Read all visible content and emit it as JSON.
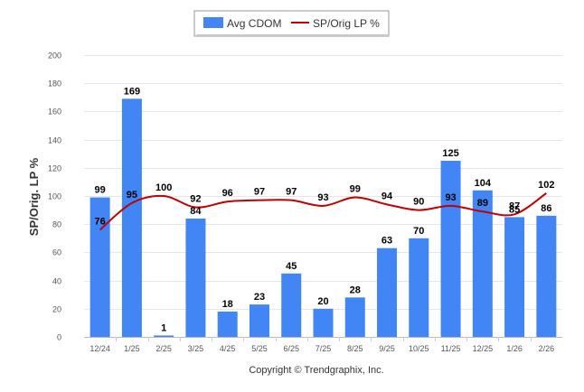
{
  "chart_data": {
    "type": "bar+line",
    "categories": [
      "12/24",
      "1/25",
      "2/25",
      "3/25",
      "4/25",
      "5/25",
      "6/25",
      "7/25",
      "8/25",
      "9/25",
      "10/25",
      "11/25",
      "12/25",
      "1/26",
      "2/26"
    ],
    "series": [
      {
        "name": "Avg CDOM",
        "type": "bar",
        "color": "#4285f4",
        "values": [
          99,
          169,
          1,
          84,
          18,
          23,
          45,
          20,
          28,
          63,
          70,
          125,
          104,
          85,
          86
        ]
      },
      {
        "name": "SP/Orig LP %",
        "type": "line",
        "color": "#c00000",
        "values": [
          76,
          95,
          100,
          92,
          96,
          97,
          97,
          93,
          99,
          94,
          90,
          93,
          89,
          87,
          102
        ]
      }
    ],
    "ylabel": "SP/Orig. LP %",
    "ylim": [
      0,
      200
    ],
    "yticks": [
      0,
      20,
      40,
      60,
      80,
      100,
      120,
      140,
      160,
      180,
      200
    ],
    "grid": true,
    "legend_position": "top-center"
  },
  "credit": "Copyright © Trendgraphix, Inc."
}
